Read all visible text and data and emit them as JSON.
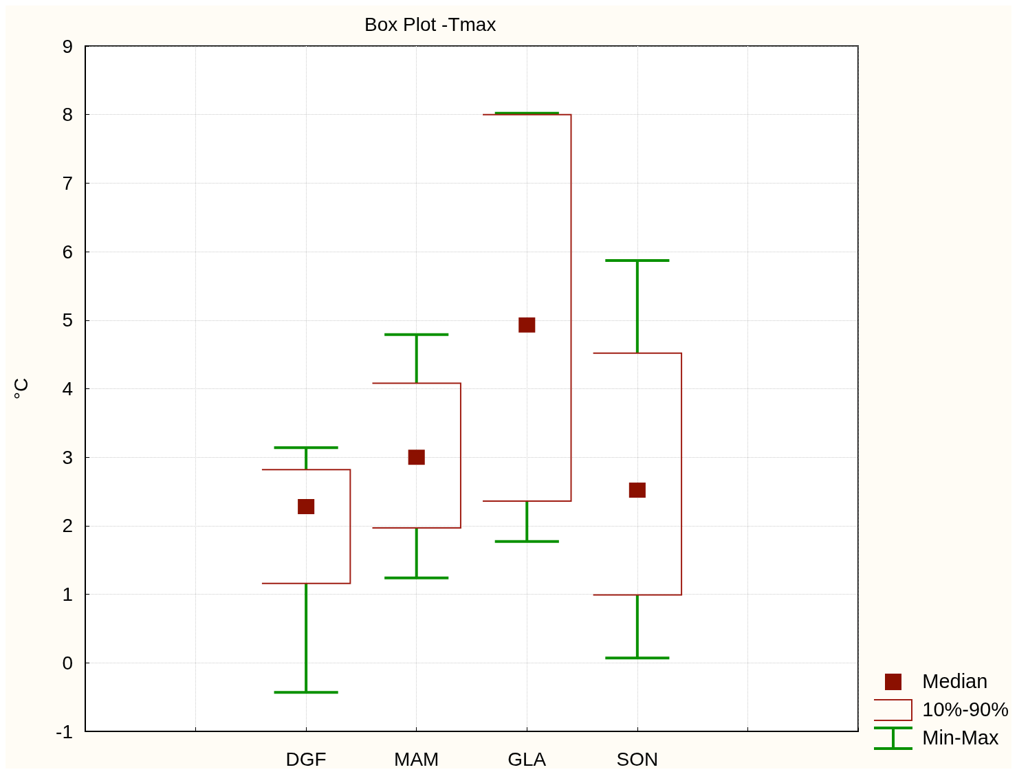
{
  "chart_data": {
    "type": "box",
    "title": "Box Plot -Tmax",
    "ylabel": "°C",
    "categories": [
      null,
      null,
      "DGF",
      "MAM",
      "GLA",
      "SON",
      null,
      null
    ],
    "ylim": [
      -1,
      9
    ],
    "yticks": [
      -1,
      0,
      1,
      2,
      3,
      4,
      5,
      6,
      7,
      8,
      9
    ],
    "grid": true,
    "annotations": [
      "Median",
      "10%-90%",
      "Min-Max"
    ],
    "boxes": [
      null,
      null,
      {
        "low": -0.43,
        "q1": 1.16,
        "median": 2.28,
        "q3": 2.82,
        "high": 3.14
      },
      {
        "low": 1.24,
        "q1": 1.97,
        "median": 3.0,
        "q3": 4.08,
        "high": 4.79
      },
      {
        "low": 1.77,
        "q1": 2.36,
        "median": 4.93,
        "q3": 8.0,
        "high": 8.02
      },
      {
        "low": 0.07,
        "q1": 0.99,
        "median": 2.52,
        "q3": 4.52,
        "high": 5.87
      },
      null,
      null
    ]
  }
}
